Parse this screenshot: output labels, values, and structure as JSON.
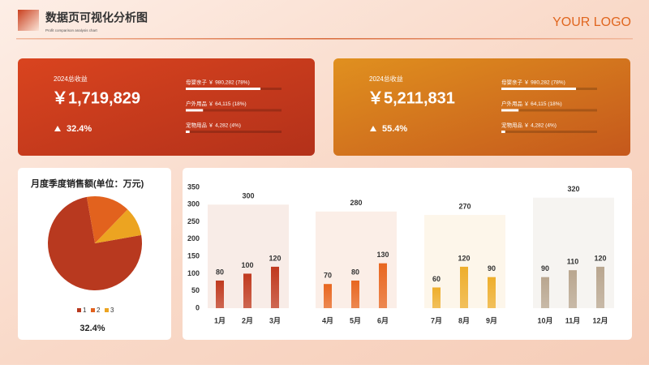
{
  "header": {
    "title": "数据页可视化分析图",
    "subtitle": "Profit comparison analysis chart",
    "logo": "YOUR LOGO"
  },
  "cards": [
    {
      "label": "2024总收益",
      "value": "￥1,719,829",
      "change": "32.4%",
      "colors": [
        "#d9441f",
        "#b3311a"
      ],
      "items": [
        {
          "label": "母婴亲子 ￥ 980,282 (78%)",
          "share": 78
        },
        {
          "label": "户外用品 ￥ 64,115 (18%)",
          "share": 18
        },
        {
          "label": "宠物用品 ￥ 4,282 (4%)",
          "share": 4
        }
      ]
    },
    {
      "label": "2024总收益",
      "value": "￥5,211,831",
      "change": "55.4%",
      "colors": [
        "#e0901f",
        "#c5581c"
      ],
      "items": [
        {
          "label": "母婴亲子 ￥ 980,282 (78%)",
          "share": 78
        },
        {
          "label": "户外用品 ￥ 64,115 (18%)",
          "share": 18
        },
        {
          "label": "宠物用品 ￥ 4,282 (4%)",
          "share": 4
        }
      ]
    }
  ],
  "chart_data": [
    {
      "type": "pie",
      "title": "月度季度销售额(单位：万元)",
      "categories": [
        "1",
        "2",
        "3"
      ],
      "values": [
        75,
        15,
        10
      ],
      "colors": [
        "#b8391f",
        "#e2621e",
        "#eca421"
      ],
      "annotation": "32.4%"
    },
    {
      "type": "bar",
      "categories": [
        "1月",
        "2月",
        "3月",
        "4月",
        "5月",
        "6月",
        "7月",
        "8月",
        "9月",
        "10月",
        "11月",
        "12月"
      ],
      "values": [
        80,
        100,
        120,
        70,
        80,
        130,
        60,
        120,
        90,
        90,
        110,
        120
      ],
      "quarter_totals": [
        300,
        280,
        270,
        320
      ],
      "quarter_colors": [
        "#c03a1f",
        "#e8661f",
        "#eeae2c",
        "#b9a68f"
      ],
      "quarter_backgrounds": [
        "#f8ece7",
        "#fbeee7",
        "#fdf6ea",
        "#f6f4f1"
      ],
      "ylim": [
        0,
        350
      ],
      "yticks": [
        0,
        50,
        100,
        150,
        200,
        250,
        300,
        350
      ]
    }
  ]
}
